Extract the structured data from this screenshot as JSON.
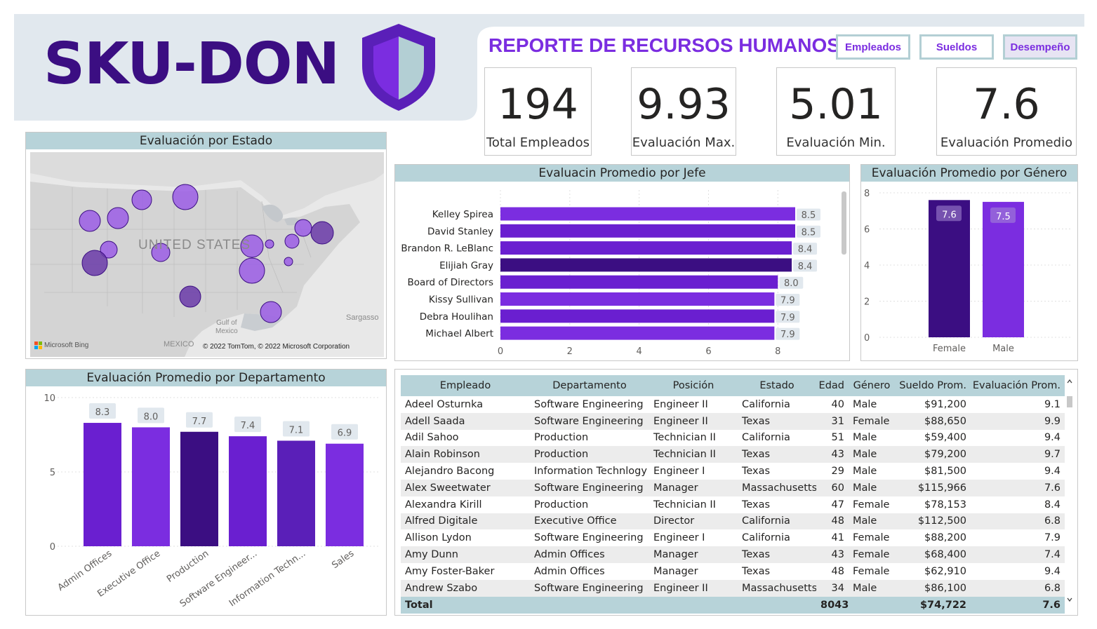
{
  "header": {
    "logo": "SKU-DON",
    "title": "REPORTE DE RECURSOS HUMANOS",
    "nav": [
      "Empleados",
      "Sueldos",
      "Desempeño"
    ],
    "active_nav": "Desempeño",
    "colors": {
      "band": "#e1e8ee",
      "logo": "#3b0e82",
      "accent": "#7b2de0",
      "shield_light": "#b3cfd4"
    }
  },
  "kpis": [
    {
      "value": "194",
      "label": "Total Empleados"
    },
    {
      "value": "9.93",
      "label": "Evaluación Max."
    },
    {
      "value": "5.01",
      "label": "Evaluación Min."
    },
    {
      "value": "7.6",
      "label": "Evaluación Promedio"
    }
  ],
  "map": {
    "title": "Evaluación por Estado",
    "country_label": "UNITED STATES",
    "labels": {
      "gulf": "Gulf of\nMexico",
      "mexico": "MEXICO",
      "sargasso": "Sargasso"
    },
    "bing": "Microsoft Bing",
    "copyright": "© 2022 TomTom, © 2022 Microsoft Corporation"
  },
  "charts": {
    "jefe_title": "Evaluacin Promedio por Jefe",
    "genero_title": "Evaluación Promedio por Género",
    "depto_title": "Evaluación Promedio por Departamento"
  },
  "chart_data": [
    {
      "type": "bar",
      "orientation": "horizontal",
      "title": "Evaluacin Promedio por Jefe",
      "categories": [
        "Kelley Spirea",
        "David Stanley",
        "Brandon R. LeBlanc",
        "Elijiah Gray",
        "Board of Directors",
        "Kissy Sullivan",
        "Debra Houlihan",
        "Michael Albert"
      ],
      "values": [
        8.5,
        8.5,
        8.4,
        8.4,
        8.0,
        7.9,
        7.9,
        7.9
      ],
      "labels": [
        "8.5",
        "8.5",
        "8.4",
        "8.4",
        "8.0",
        "7.9",
        "7.9",
        "7.9"
      ],
      "colors": [
        "#7b2de0",
        "#6a1fd0",
        "#6a1fd0",
        "#3b0e82",
        "#6a1fd0",
        "#7b2de0",
        "#6a1fd0",
        "#7b2de0"
      ],
      "xticks": [
        "0",
        "2",
        "4",
        "6",
        "8"
      ],
      "xlim": [
        0,
        8.5
      ]
    },
    {
      "type": "bar",
      "title": "Evaluación Promedio por Género",
      "categories": [
        "Female",
        "Male"
      ],
      "values": [
        7.6,
        7.5
      ],
      "labels": [
        "7.6",
        "7.5"
      ],
      "colors": [
        "#3b0e82",
        "#7b2de0"
      ],
      "yticks": [
        "0",
        "2",
        "4",
        "6",
        "8"
      ],
      "ylim": [
        0,
        8
      ]
    },
    {
      "type": "bar",
      "title": "Evaluación Promedio por Departamento",
      "categories": [
        "Admin Offices",
        "Executive Office",
        "Production",
        "Software Engineer...",
        "Information Techn...",
        "Sales"
      ],
      "values": [
        8.3,
        8.0,
        7.7,
        7.4,
        7.1,
        6.9
      ],
      "labels": [
        "8.3",
        "8.0",
        "7.7",
        "7.4",
        "7.1",
        "6.9"
      ],
      "colors": [
        "#6a1fd0",
        "#7b2de0",
        "#3b0e82",
        "#6a1fd0",
        "#5a1fb8",
        "#7b2de0"
      ],
      "yticks": [
        "0",
        "5",
        "10"
      ],
      "ylim": [
        0,
        10
      ]
    }
  ],
  "table": {
    "columns": [
      "Empleado",
      "Departamento",
      "Posición",
      "Estado",
      "Edad",
      "Género",
      "Sueldo Prom.",
      "Evaluación Prom."
    ],
    "rows": [
      [
        "Adeel Osturnka",
        "Software Engineering",
        "Engineer II",
        "California",
        "40",
        "Male",
        "$91,200",
        "9.1"
      ],
      [
        "Adell Saada",
        "Software Engineering",
        "Engineer II",
        "Texas",
        "31",
        "Female",
        "$88,650",
        "9.9"
      ],
      [
        "Adil Sahoo",
        "Production",
        "Technician II",
        "California",
        "51",
        "Male",
        "$59,400",
        "9.4"
      ],
      [
        "Alain Robinson",
        "Production",
        "Technician II",
        "Texas",
        "43",
        "Male",
        "$79,200",
        "9.7"
      ],
      [
        "Alejandro Bacong",
        "Information Technlogy",
        "Engineer I",
        "Texas",
        "29",
        "Male",
        "$81,500",
        "9.4"
      ],
      [
        "Alex Sweetwater",
        "Software Engineering",
        "Manager",
        "Massachusetts",
        "60",
        "Male",
        "$115,966",
        "7.6"
      ],
      [
        "Alexandra Kirill",
        "Production",
        "Technician II",
        "Texas",
        "47",
        "Female",
        "$78,153",
        "8.4"
      ],
      [
        "Alfred Digitale",
        "Executive Office",
        "Director",
        "California",
        "48",
        "Male",
        "$112,500",
        "6.8"
      ],
      [
        "Allison Lydon",
        "Software Engineering",
        "Engineer I",
        "California",
        "41",
        "Female",
        "$88,200",
        "7.9"
      ],
      [
        "Amy Dunn",
        "Admin Offices",
        "Manager",
        "Texas",
        "43",
        "Female",
        "$68,400",
        "7.4"
      ],
      [
        "Amy Foster-Baker",
        "Admin Offices",
        "Manager",
        "Texas",
        "48",
        "Female",
        "$62,910",
        "9.4"
      ],
      [
        "Andrew Szabo",
        "Software Engineering",
        "Engineer II",
        "Massachusetts",
        "34",
        "Male",
        "$86,100",
        "6.8"
      ]
    ],
    "total": {
      "label": "Total",
      "edad": "8043",
      "sueldo": "$74,722",
      "evaluacion": "7.6"
    }
  }
}
